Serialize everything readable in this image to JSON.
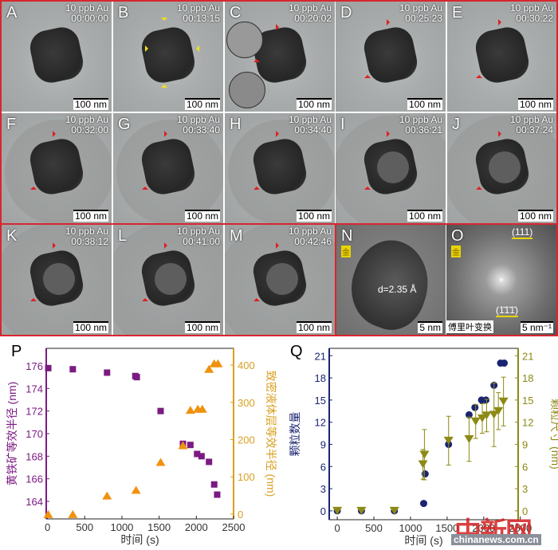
{
  "panels": [
    {
      "letter": "A",
      "label": "10 ppb Au",
      "time": "00:00:00",
      "scale": "100 nm",
      "stage": 0
    },
    {
      "letter": "B",
      "label": "10 ppb Au",
      "time": "00:13:15",
      "scale": "100 nm",
      "stage": 0
    },
    {
      "letter": "C",
      "label": "10 ppb Au",
      "time": "00:20:02",
      "scale": "100 nm",
      "stage": 1
    },
    {
      "letter": "D",
      "label": "10 ppb Au",
      "time": "00:25:23",
      "scale": "100 nm",
      "stage": 1
    },
    {
      "letter": "E",
      "label": "10 ppb Au",
      "time": "00:30:22",
      "scale": "100 nm",
      "stage": 1
    },
    {
      "letter": "F",
      "label": "10 ppb Au",
      "time": "00:32:00",
      "scale": "100 nm",
      "stage": 2
    },
    {
      "letter": "G",
      "label": "10 ppb Au",
      "time": "00:33:40",
      "scale": "100 nm",
      "stage": 2
    },
    {
      "letter": "H",
      "label": "10 ppb Au",
      "time": "00:34:40",
      "scale": "100 nm",
      "stage": 2
    },
    {
      "letter": "I",
      "label": "10 ppb Au",
      "time": "00:36:21",
      "scale": "100 nm",
      "stage": 3
    },
    {
      "letter": "J",
      "label": "10 ppb Au",
      "time": "00:37:24",
      "scale": "100 nm",
      "stage": 3
    },
    {
      "letter": "K",
      "label": "10 ppb Au",
      "time": "00:38:12",
      "scale": "100 nm",
      "stage": 4
    },
    {
      "letter": "L",
      "label": "10 ppb Au",
      "time": "00:41:00",
      "scale": "100 nm",
      "stage": 4
    },
    {
      "letter": "M",
      "label": "10 ppb Au",
      "time": "00:42:46",
      "scale": "100 nm",
      "stage": 4
    }
  ],
  "panel_n": {
    "letter": "N",
    "element": "金",
    "spacing": "d=2.35 Å",
    "scale": "5 nm"
  },
  "panel_o": {
    "letter": "O",
    "element": "金",
    "spot_top": "(111)",
    "spot_bottom": "(1̄1̄1̄)",
    "caption": "傅里叶变换",
    "scale": "5 nm⁻¹"
  },
  "colors": {
    "frame": "#d8262e",
    "arrow_red": "#e02020",
    "arrow_yellow": "#f2e01a"
  },
  "chart_data": [
    {
      "panel": "P",
      "type": "scatter",
      "xlabel": "时间 (s)",
      "ylabel": "黄铁矿等效半径 (nm)",
      "y2label": "致密液体层等效半径 (nm)",
      "xlim": [
        -17,
        2500
      ],
      "ylim": [
        162.45,
        177.55
      ],
      "y2lim": [
        -13,
        445
      ],
      "xticks": [
        0,
        500,
        1000,
        1500,
        2000,
        2500
      ],
      "yticks": [
        164,
        166,
        168,
        170,
        172,
        174,
        176
      ],
      "y2ticks": [
        0,
        100,
        200,
        300,
        400
      ],
      "grid": false,
      "series": [
        {
          "axis": "left",
          "marker": "square",
          "color": "#7b1a82",
          "x": [
            10,
            340,
            800,
            1180,
            1200,
            1520,
            1820,
            1920,
            2010,
            2070,
            2170,
            2240,
            2280
          ],
          "y": [
            175.8,
            175.7,
            175.4,
            175.1,
            175.0,
            172.0,
            169.1,
            169.0,
            168.2,
            168.0,
            167.5,
            165.5,
            164.6
          ]
        },
        {
          "axis": "right",
          "marker": "triangle",
          "color": "#f0920e",
          "x": [
            10,
            340,
            800,
            1190,
            1520,
            1820,
            1920,
            2020,
            2080,
            2170,
            2240,
            2290
          ],
          "y": [
            0,
            0,
            50,
            65,
            140,
            185,
            280,
            283,
            283,
            390,
            405,
            405
          ]
        }
      ],
      "axis_colors": {
        "left": "#7b1a82",
        "right": "#d9a020"
      }
    },
    {
      "panel": "Q",
      "type": "scatter",
      "xlabel": "时间 (s)",
      "ylabel": "颗粒数量",
      "y2label": "颗粒尺寸 (nm)",
      "xlim": [
        -110,
        2470
      ],
      "ylim": [
        -1.2,
        22
      ],
      "y2lim": [
        -1.2,
        22
      ],
      "xticks": [
        0,
        500,
        1000,
        1500,
        2000,
        2500
      ],
      "yticks": [
        0,
        3,
        6,
        9,
        12,
        15,
        18,
        21
      ],
      "y2ticks": [
        0,
        3,
        6,
        9,
        12,
        15,
        18,
        21
      ],
      "grid": false,
      "series": [
        {
          "axis": "left",
          "marker": "circle",
          "color": "#1a2472",
          "x": [
            0,
            330,
            780,
            1180,
            1200,
            1520,
            1800,
            1880,
            1970,
            2030,
            2140,
            2230,
            2280
          ],
          "y": [
            0,
            0,
            0,
            1,
            5,
            9,
            13,
            14,
            15,
            15,
            17,
            20,
            20
          ]
        },
        {
          "axis": "right",
          "marker": "triangle-down",
          "color": "#8c8a14",
          "x": [
            0,
            330,
            780,
            1170,
            1190,
            1520,
            1800,
            1890,
            1980,
            2040,
            2140,
            2200,
            2270
          ],
          "y": [
            0,
            0,
            0,
            6.3,
            7.6,
            9.5,
            9.7,
            12.1,
            12.5,
            12.9,
            13.0,
            13.5,
            14.8
          ],
          "error": [
            0,
            0,
            0,
            2,
            3.4,
            3.3,
            3.0,
            2.3,
            2.0,
            2.2,
            4.3,
            2.5,
            3.3
          ]
        }
      ],
      "axis_colors": {
        "left": "#1a2472",
        "right": "#8c8a14"
      }
    }
  ],
  "watermark": {
    "logo": "中新网",
    "url": "chinanews.com.cn"
  }
}
